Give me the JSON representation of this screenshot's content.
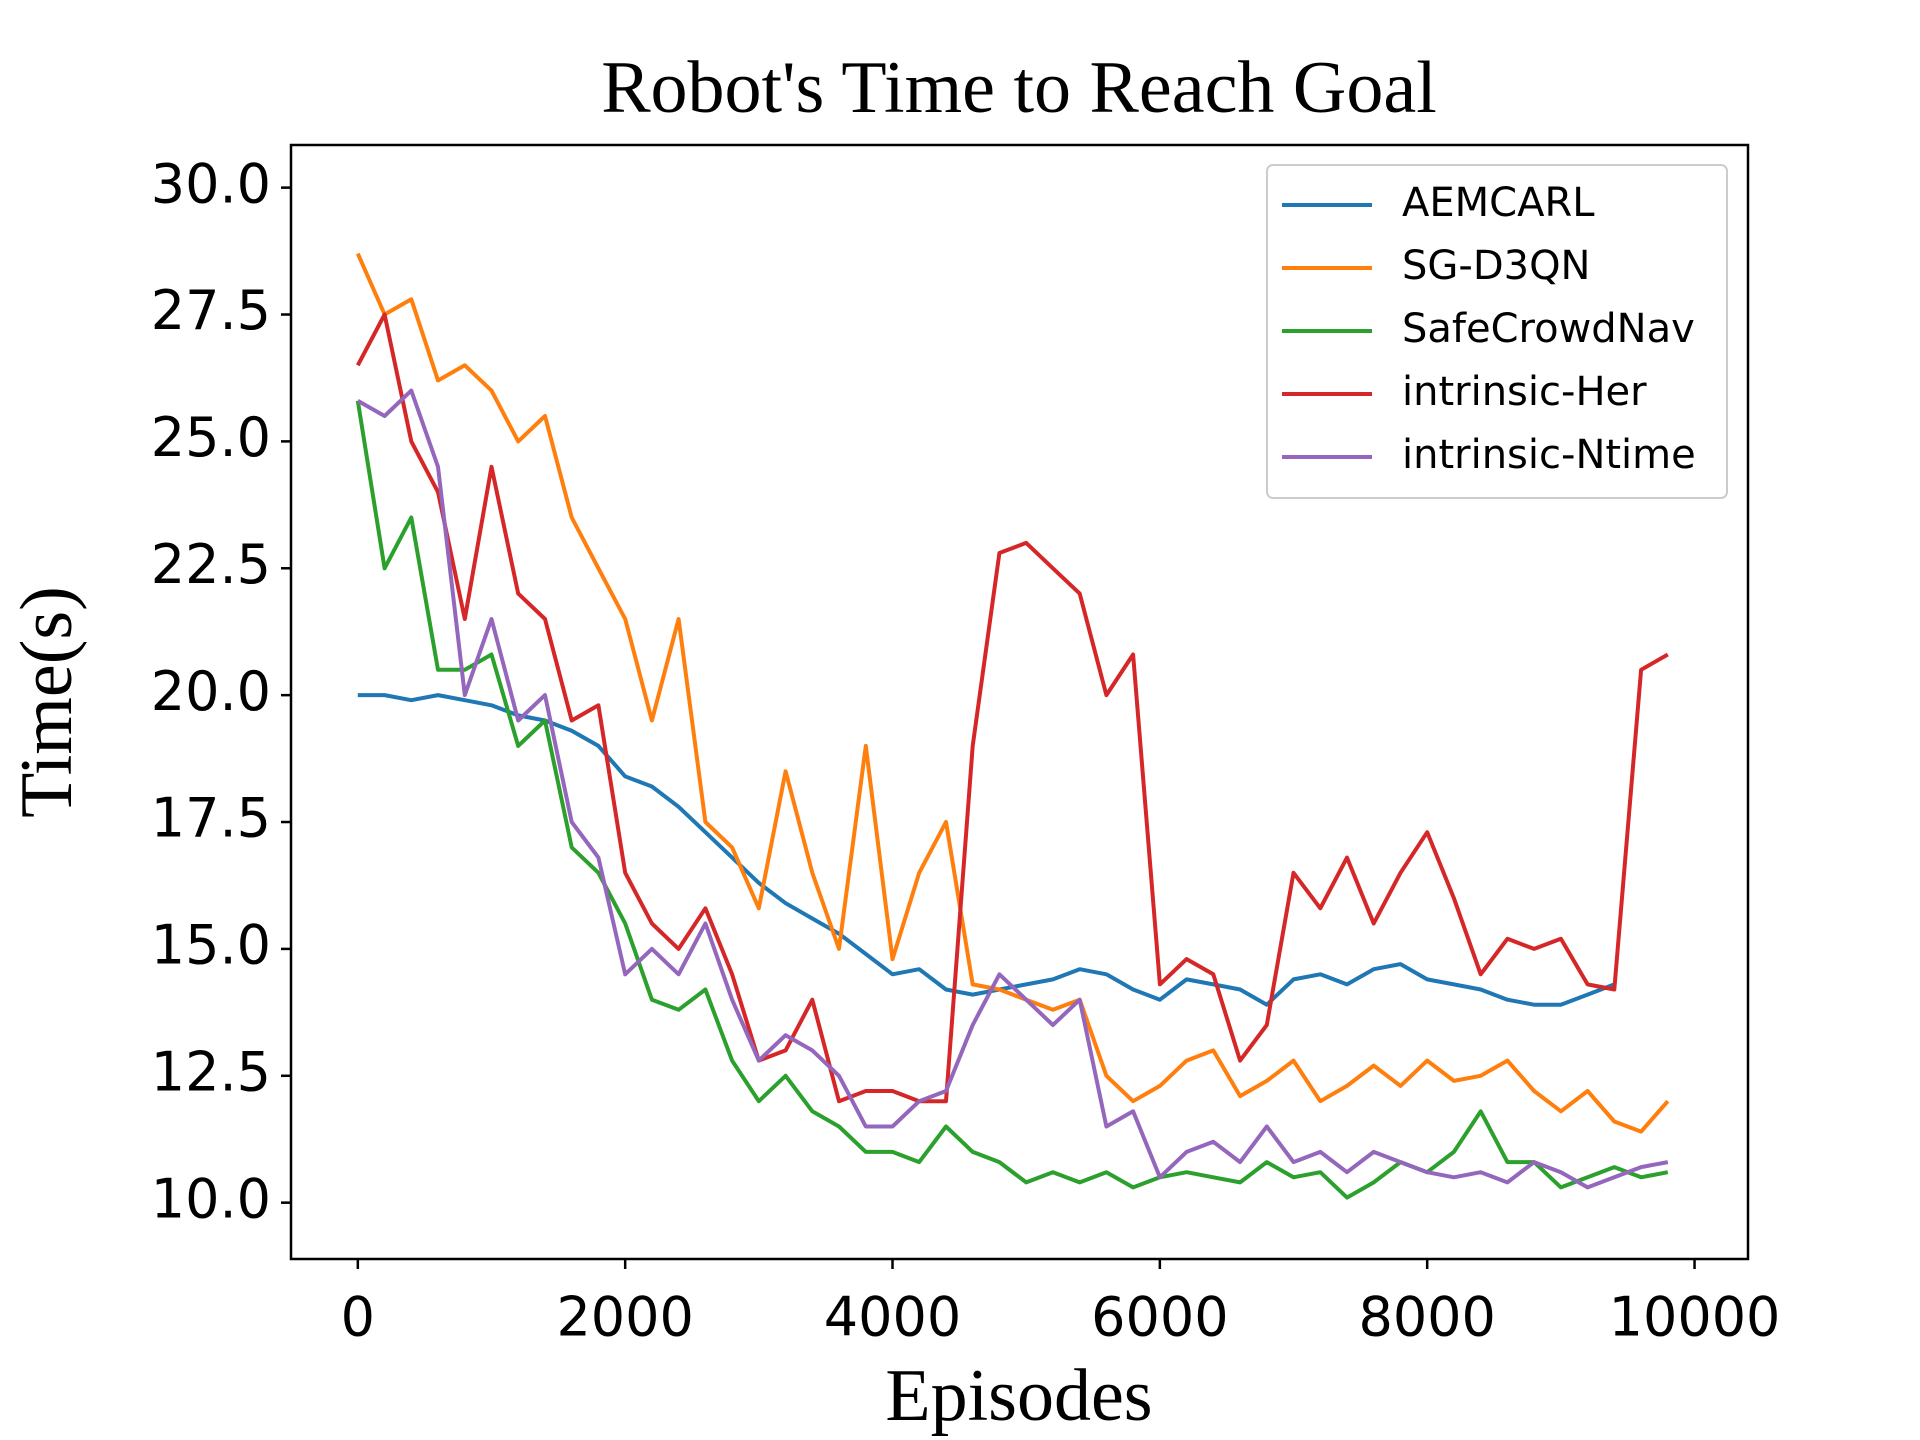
{
  "chart_data": {
    "type": "line",
    "title": "Robot's Time to Reach Goal",
    "x_label": "Episodes",
    "y_label": "Time(s)",
    "x": [
      0,
      200,
      400,
      600,
      800,
      1000,
      1200,
      1400,
      1600,
      1800,
      2000,
      2200,
      2400,
      2600,
      2800,
      3000,
      3200,
      3400,
      3600,
      3800,
      4000,
      4200,
      4400,
      4600,
      4800,
      5000,
      5200,
      5400,
      5600,
      5800,
      6000,
      6200,
      6400,
      6600,
      6800,
      7000,
      7200,
      7400,
      7600,
      7800,
      8000,
      8200,
      8400,
      8600,
      8800,
      9000,
      9200,
      9400,
      9600,
      9800
    ],
    "series": [
      {
        "name": "AEMCARL",
        "color": "#1f77b4",
        "values": [
          20,
          20,
          19.9,
          20,
          19.9,
          19.8,
          19.6,
          19.5,
          19.3,
          19,
          18.4,
          18.2,
          17.8,
          17.3,
          16.8,
          16.3,
          15.9,
          15.6,
          15.3,
          14.9,
          14.5,
          14.6,
          14.2,
          14.1,
          14.2,
          14.3,
          14.4,
          14.6,
          14.5,
          14.2,
          14.0,
          14.4,
          14.3,
          14.2,
          13.9,
          14.4,
          14.5,
          14.3,
          14.6,
          14.7,
          14.4,
          14.3,
          14.2,
          14.0,
          13.9,
          13.9,
          14.1,
          14.3,
          null,
          null
        ]
      },
      {
        "name": "SG-D3QN",
        "color": "#ff7f0e",
        "values": [
          28.7,
          27.5,
          27.8,
          26.2,
          26.5,
          26.0,
          25.0,
          25.5,
          23.5,
          22.5,
          21.5,
          19.5,
          21.5,
          17.5,
          17.0,
          15.8,
          18.5,
          16.5,
          15.0,
          19.0,
          14.8,
          16.5,
          17.5,
          14.3,
          14.2,
          14.0,
          13.8,
          14.0,
          12.5,
          12.0,
          12.3,
          12.8,
          13.0,
          12.1,
          12.4,
          12.8,
          12.0,
          12.3,
          12.7,
          12.3,
          12.8,
          12.4,
          12.5,
          12.8,
          12.2,
          11.8,
          12.2,
          11.6,
          11.4,
          12.0
        ]
      },
      {
        "name": "SafeCrowdNav",
        "color": "#2ca02c",
        "values": [
          25.8,
          22.5,
          23.5,
          20.5,
          20.5,
          20.8,
          19.0,
          19.5,
          17.0,
          16.5,
          15.5,
          14.0,
          13.8,
          14.2,
          12.8,
          12.0,
          12.5,
          11.8,
          11.5,
          11.0,
          11.0,
          10.8,
          11.5,
          11.0,
          10.8,
          10.4,
          10.6,
          10.4,
          10.6,
          10.3,
          10.5,
          10.6,
          10.5,
          10.4,
          10.8,
          10.5,
          10.6,
          10.1,
          10.4,
          10.8,
          10.6,
          11.0,
          11.8,
          10.8,
          10.8,
          10.3,
          10.5,
          10.7,
          10.5,
          10.6
        ]
      },
      {
        "name": "intrinsic-Her",
        "color": "#d62728",
        "values": [
          26.5,
          27.5,
          25.0,
          24.0,
          21.5,
          24.5,
          22.0,
          21.5,
          19.5,
          19.8,
          16.5,
          15.5,
          15.0,
          15.8,
          14.5,
          12.8,
          13.0,
          14.0,
          12.0,
          12.2,
          12.2,
          12.0,
          12.0,
          19.0,
          22.8,
          23.0,
          22.5,
          22.0,
          20.0,
          20.8,
          14.3,
          14.8,
          14.5,
          12.8,
          13.5,
          16.5,
          15.8,
          16.8,
          15.5,
          16.5,
          17.3,
          16.0,
          14.5,
          15.2,
          15.0,
          15.2,
          14.3,
          14.2,
          20.5,
          20.8
        ]
      },
      {
        "name": "intrinsic-Ntime",
        "color": "#9467bd",
        "values": [
          25.8,
          25.5,
          26.0,
          24.5,
          20.0,
          21.5,
          19.5,
          20.0,
          17.5,
          16.8,
          14.5,
          15.0,
          14.5,
          15.5,
          14.0,
          12.8,
          13.3,
          13.0,
          12.5,
          11.5,
          11.5,
          12.0,
          12.2,
          13.5,
          14.5,
          14.0,
          13.5,
          14.0,
          11.5,
          11.8,
          10.5,
          11.0,
          11.2,
          10.8,
          11.5,
          10.8,
          11.0,
          10.6,
          11.0,
          10.8,
          10.6,
          10.5,
          10.6,
          10.4,
          10.8,
          10.6,
          10.3,
          10.5,
          10.7,
          10.8
        ]
      }
    ],
    "xlim": [
      -500,
      10400
    ],
    "ylim": [
      8.89,
      30.84
    ],
    "xticks": [
      0,
      2000,
      4000,
      6000,
      8000,
      10000
    ],
    "yticks": [
      {
        "value": 10,
        "label": "10.0"
      },
      12.5,
      {
        "value": 15,
        "label": "15.0"
      },
      17.5,
      {
        "value": 20,
        "label": "20.0"
      },
      22.5,
      {
        "value": 25,
        "label": "25.0"
      },
      27.5,
      {
        "value": 30,
        "label": "30.0"
      }
    ],
    "legend": "upper right"
  }
}
